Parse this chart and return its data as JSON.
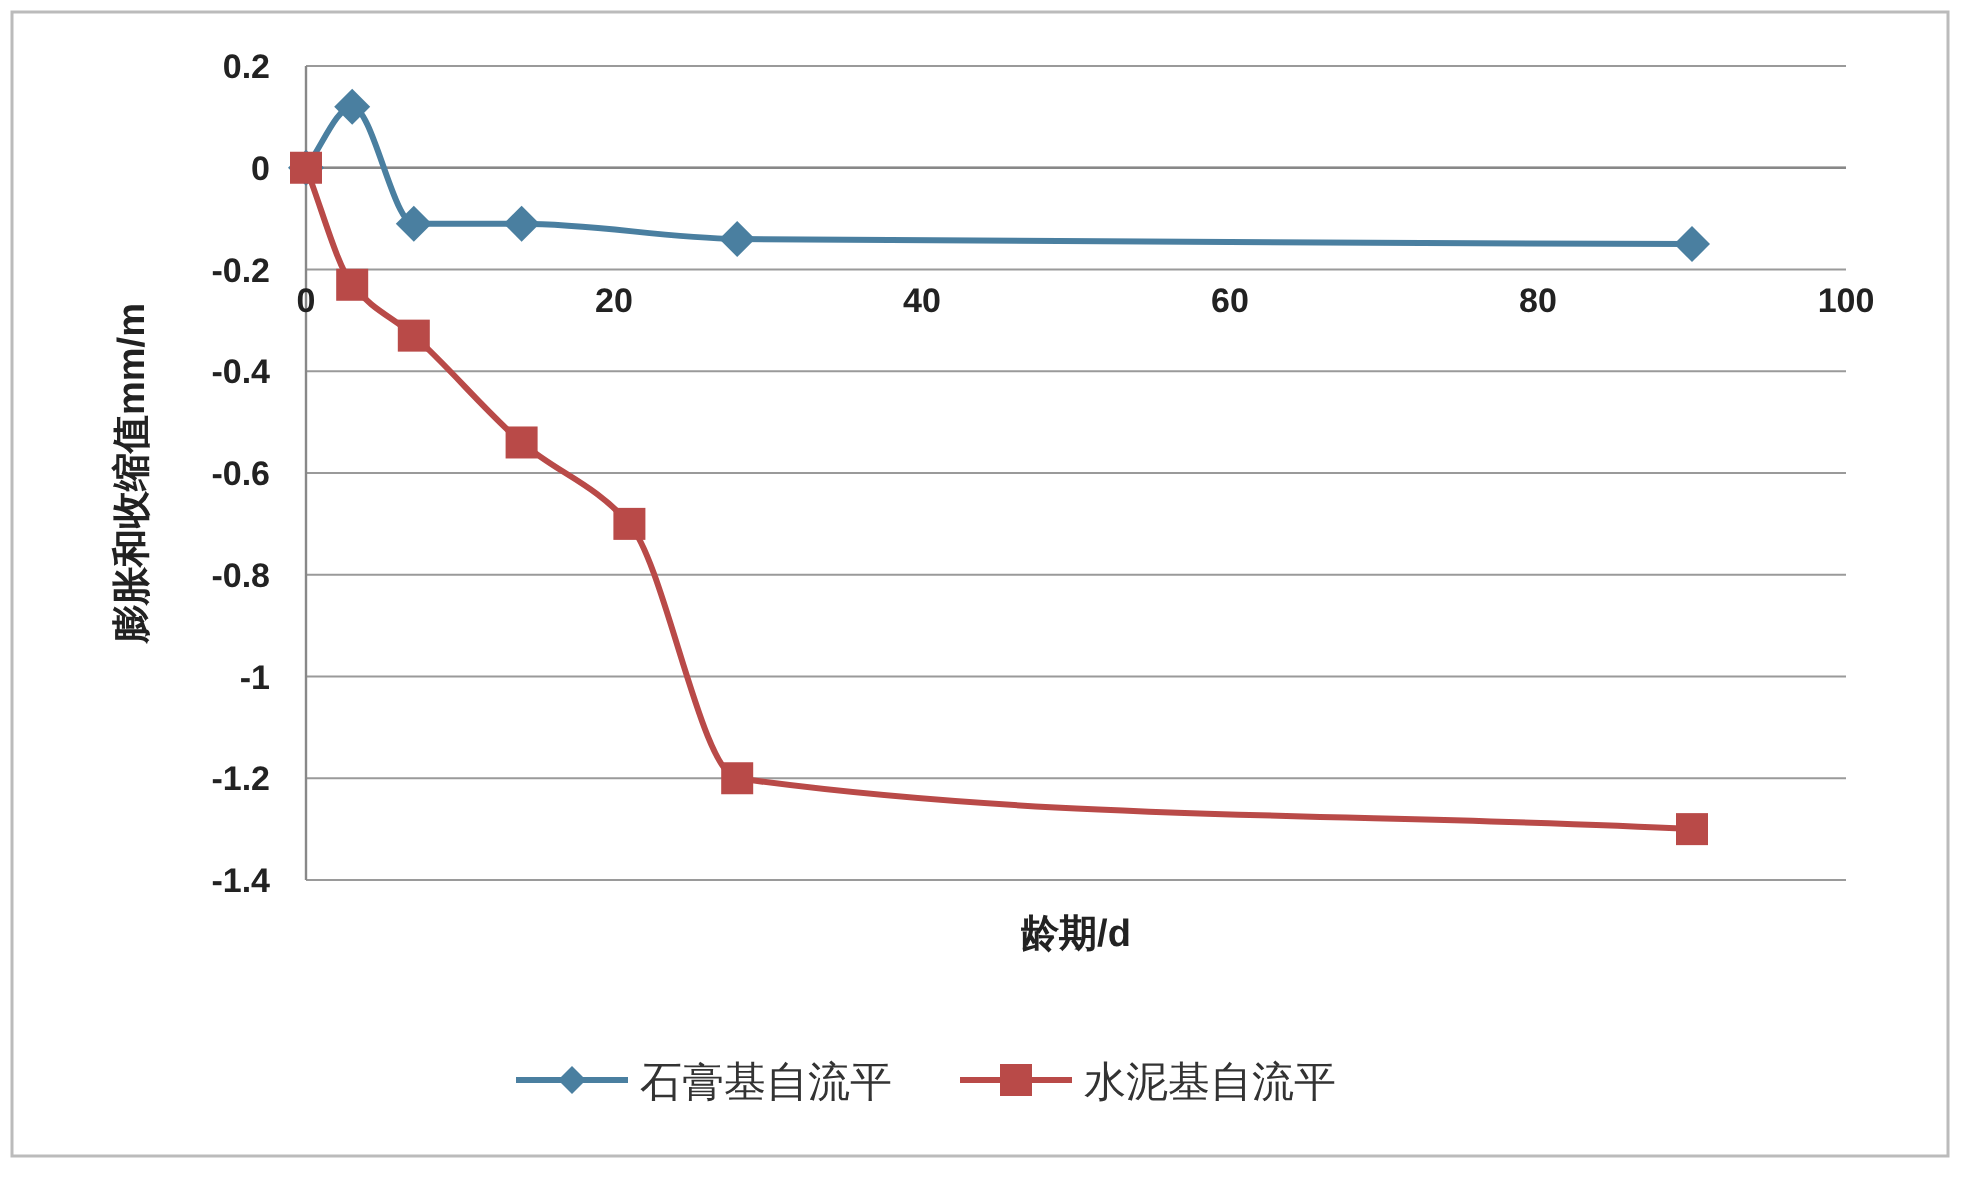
{
  "chart_data": {
    "type": "line",
    "xlabel": "龄期/d",
    "ylabel": "膨胀和收缩值mm/m",
    "x": [
      0,
      3,
      7,
      14,
      21,
      28,
      90
    ],
    "xlim": [
      0,
      100
    ],
    "xticks": [
      0,
      20,
      40,
      60,
      80,
      100
    ],
    "ylim": [
      -1.4,
      0.2
    ],
    "yticks": [
      -1.4,
      -1.2,
      -1,
      -0.8,
      -0.6,
      -0.4,
      -0.2,
      0,
      0.2
    ],
    "grid": "y",
    "legend": "bottom",
    "line_style": "solid",
    "series": [
      {
        "name": "石膏基自流平",
        "color": "#4a7fa0",
        "marker": "diamond",
        "x": [
          0,
          3,
          7,
          14,
          28,
          90
        ],
        "values": [
          0,
          0.12,
          -0.11,
          -0.11,
          -0.14,
          -0.15
        ]
      },
      {
        "name": "水泥基自流平",
        "color": "#b94a48",
        "marker": "square",
        "values": [
          0,
          -0.23,
          -0.33,
          -0.54,
          -0.7,
          -1.2,
          -1.3
        ]
      }
    ]
  }
}
